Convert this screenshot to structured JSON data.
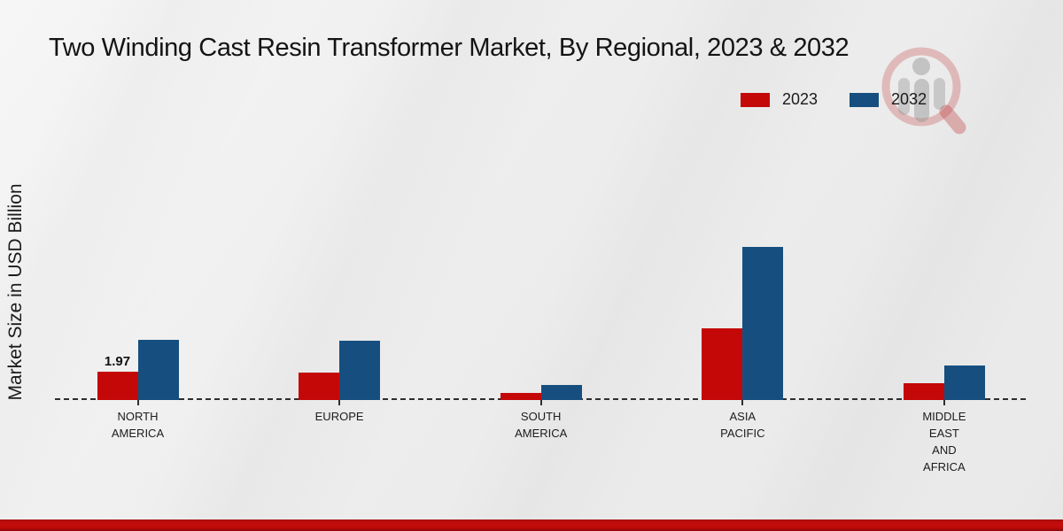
{
  "title": "Two Winding Cast Resin Transformer Market, By Regional, 2023 & 2032",
  "y_axis_label": "Market Size in USD Billion",
  "legend": {
    "items": [
      {
        "label": "2023",
        "color": "#c40808"
      },
      {
        "label": "2032",
        "color": "#164f7f"
      }
    ]
  },
  "watermark_icon": "market-research-magnifier-logo",
  "accent_colors": {
    "series_2023_red": "#c40808",
    "series_2032_blue": "#164f7f",
    "footer_strip_red": "#c30c0c"
  },
  "chart_data": {
    "type": "bar",
    "title": "Two Winding Cast Resin Transformer Market, By Regional, 2023 & 2032",
    "ylabel": "Market Size in USD Billion",
    "xlabel": "",
    "ylim": [
      0,
      11.5
    ],
    "grid": false,
    "legend_position": "top-right",
    "baseline_style": "dashed",
    "categories": [
      "NORTH AMERICA",
      "EUROPE",
      "SOUTH AMERICA",
      "ASIA PACIFIC",
      "MIDDLE EAST AND AFRICA"
    ],
    "tick_labels": [
      "NORTH\nAMERICA",
      "EUROPE",
      "SOUTH\nAMERICA",
      "ASIA\nPACIFIC",
      "MIDDLE\nEAST\nAND\nAFRICA"
    ],
    "series": [
      {
        "name": "2023",
        "color": "#c40808",
        "values": [
          1.97,
          1.9,
          0.5,
          5.05,
          1.2
        ]
      },
      {
        "name": "2032",
        "color": "#164f7f",
        "values": [
          4.2,
          4.15,
          1.05,
          10.75,
          2.45
        ]
      }
    ],
    "annotations": [
      {
        "series": "2023",
        "category_index": 0,
        "text": "1.97"
      }
    ]
  }
}
